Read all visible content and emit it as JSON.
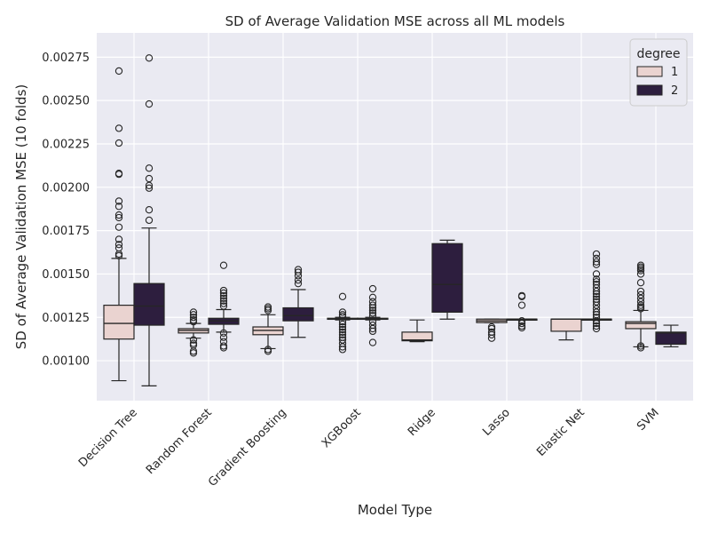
{
  "chart_data": {
    "type": "box",
    "title": "SD of Average Validation MSE across all ML models",
    "xlabel": "Model Type",
    "ylabel": "SD of Average Validation MSE (10 folds)",
    "ylim": [
      0.00077,
      0.00289
    ],
    "yticks": [
      0.001,
      0.00125,
      0.0015,
      0.00175,
      0.002,
      0.00225,
      0.0025,
      0.00275
    ],
    "ytick_labels": [
      "0.00100",
      "0.00125",
      "0.00150",
      "0.00175",
      "0.00200",
      "0.00225",
      "0.00250",
      "0.00275"
    ],
    "grid": true,
    "legend": {
      "title": "degree",
      "placement": "top-right",
      "entries": [
        {
          "label": "1",
          "color": "#ead3d0"
        },
        {
          "label": "2",
          "color": "#2d1e3e"
        }
      ]
    },
    "categories": [
      "Decision Tree",
      "Random Forest",
      "Gradient Boosting",
      "XGBoost",
      "Ridge",
      "Lasso",
      "Elastic Net",
      "SVM"
    ],
    "series": [
      {
        "name": "1",
        "color": "#ead3d0",
        "boxes": [
          {
            "whislo": 0.000885,
            "q1": 0.001125,
            "med": 0.001215,
            "q3": 0.00132,
            "whishi": 0.00159,
            "fliers": [
              0.00267,
              0.00234,
              0.002255,
              0.00208,
              0.002075,
              0.00192,
              0.00189,
              0.00184,
              0.001825,
              0.00177,
              0.0017,
              0.00167,
              0.00165,
              0.001615,
              0.001605
            ]
          },
          {
            "whislo": 0.00113,
            "q1": 0.00116,
            "med": 0.001175,
            "q3": 0.001185,
            "whishi": 0.001215,
            "fliers": [
              0.00128,
              0.001265,
              0.00125,
              0.001235,
              0.001225,
              0.00112,
              0.0011,
              0.00109,
              0.001055,
              0.001045
            ]
          },
          {
            "whislo": 0.00107,
            "q1": 0.00115,
            "med": 0.001175,
            "q3": 0.001195,
            "whishi": 0.001265,
            "fliers": [
              0.00131,
              0.0013,
              0.00129,
              0.001065,
              0.001055
            ]
          },
          {
            "whislo": 0.001235,
            "q1": 0.00124,
            "med": 0.001242,
            "q3": 0.001245,
            "whishi": 0.00125,
            "fliers": [
              0.00137,
              0.00128,
              0.001265,
              0.001255,
              0.001225,
              0.00121,
              0.001195,
              0.00118,
              0.001165,
              0.00115,
              0.001135,
              0.00112,
              0.0011,
              0.00108,
              0.001065
            ]
          },
          {
            "whislo": 0.00111,
            "q1": 0.001115,
            "med": 0.00112,
            "q3": 0.001165,
            "whishi": 0.001235,
            "fliers": []
          },
          {
            "whislo": 0.00122,
            "q1": 0.00122,
            "med": 0.00123,
            "q3": 0.00124,
            "whishi": 0.00124,
            "fliers": [
              0.001195,
              0.001185,
              0.001165,
              0.00115,
              0.00113
            ]
          },
          {
            "whislo": 0.00112,
            "q1": 0.00117,
            "med": 0.00124,
            "q3": 0.00124,
            "whishi": 0.00124,
            "fliers": []
          },
          {
            "whislo": 0.00108,
            "q1": 0.001185,
            "med": 0.001215,
            "q3": 0.001225,
            "whishi": 0.00129,
            "fliers": [
              0.00155,
              0.00154,
              0.00153,
              0.00152,
              0.0015,
              0.00145,
              0.0014,
              0.00138,
              0.00136,
              0.00134,
              0.00132,
              0.00131,
              0.0013,
              0.001085,
              0.001075
            ]
          }
        ]
      },
      {
        "name": "2",
        "color": "#2d1e3e",
        "boxes": [
          {
            "whislo": 0.000855,
            "q1": 0.001205,
            "med": 0.001315,
            "q3": 0.001445,
            "whishi": 0.001765,
            "fliers": [
              0.002745,
              0.00248,
              0.00211,
              0.00205,
              0.00201,
              0.001995,
              0.00187,
              0.00181
            ]
          },
          {
            "whislo": 0.001165,
            "q1": 0.00121,
            "med": 0.00123,
            "q3": 0.001245,
            "whishi": 0.001295,
            "fliers": [
              0.00155,
              0.001405,
              0.00139,
              0.001375,
              0.00136,
              0.001345,
              0.00133,
              0.001315,
              0.00116,
              0.001135,
              0.00111,
              0.001085,
              0.001075
            ]
          },
          {
            "whislo": 0.001135,
            "q1": 0.00123,
            "med": 0.00126,
            "q3": 0.001305,
            "whishi": 0.00141,
            "fliers": [
              0.001525,
              0.00151,
              0.00149,
              0.001465,
              0.001445
            ]
          },
          {
            "whislo": 0.001235,
            "q1": 0.00124,
            "med": 0.001242,
            "q3": 0.001245,
            "whishi": 0.00125,
            "fliers": [
              0.001415,
              0.001365,
              0.00134,
              0.00132,
              0.001305,
              0.00129,
              0.001275,
              0.00126,
              0.001225,
              0.001205,
              0.001185,
              0.00117,
              0.001105
            ]
          },
          {
            "whislo": 0.00124,
            "q1": 0.00128,
            "med": 0.00144,
            "q3": 0.001675,
            "whishi": 0.001695,
            "fliers": []
          },
          {
            "whislo": 0.00124,
            "q1": 0.00124,
            "med": 0.00124,
            "q3": 0.00124,
            "whishi": 0.00124,
            "fliers": [
              0.001375,
              0.00137,
              0.00132,
              0.00123,
              0.001215,
              0.0012,
              0.00119
            ]
          },
          {
            "whislo": 0.00124,
            "q1": 0.00124,
            "med": 0.00124,
            "q3": 0.00124,
            "whishi": 0.00124,
            "fliers": [
              0.001615,
              0.00159,
              0.00157,
              0.001555,
              0.0015,
              0.00147,
              0.001455,
              0.00144,
              0.00142,
              0.0014,
              0.001385,
              0.00137,
              0.001355,
              0.00134,
              0.00132,
              0.0013,
              0.00128,
              0.001265,
              0.00125,
              0.00123,
              0.001215,
              0.0012,
              0.001185
            ]
          },
          {
            "whislo": 0.00108,
            "q1": 0.001095,
            "med": 0.00116,
            "q3": 0.001165,
            "whishi": 0.001205,
            "fliers": []
          }
        ]
      }
    ]
  }
}
